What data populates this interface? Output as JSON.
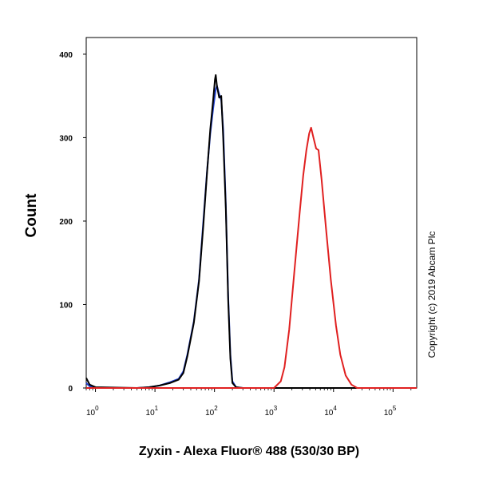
{
  "chart_data": {
    "type": "line",
    "xlabel": "Zyxin - Alexa Fluor® 488 (530/30 BP)",
    "ylabel": "Count",
    "x_scale": "log",
    "xlim": [
      0.7,
      250000
    ],
    "ylim": [
      0,
      420
    ],
    "y_ticks": [
      0,
      100,
      200,
      300,
      400
    ],
    "x_ticks": [
      {
        "value": 1,
        "base": "10",
        "exp": "0"
      },
      {
        "value": 10,
        "base": "10",
        "exp": "1"
      },
      {
        "value": 100,
        "base": "10",
        "exp": "2"
      },
      {
        "value": 1000,
        "base": "10",
        "exp": "3"
      },
      {
        "value": 10000,
        "base": "10",
        "exp": "4"
      },
      {
        "value": 100000,
        "base": "10",
        "exp": "5"
      }
    ],
    "series": [
      {
        "color": "#1f3fd0",
        "points": [
          [
            0.7,
            6
          ],
          [
            0.8,
            2
          ],
          [
            1,
            0
          ],
          [
            5,
            0
          ],
          [
            8,
            1
          ],
          [
            12,
            3
          ],
          [
            18,
            7
          ],
          [
            25,
            11
          ],
          [
            30,
            20
          ],
          [
            35,
            40
          ],
          [
            45,
            80
          ],
          [
            55,
            130
          ],
          [
            65,
            200
          ],
          [
            75,
            260
          ],
          [
            85,
            305
          ],
          [
            95,
            335
          ],
          [
            105,
            358
          ],
          [
            110,
            362
          ],
          [
            120,
            352
          ],
          [
            130,
            345
          ],
          [
            140,
            310
          ],
          [
            155,
            220
          ],
          [
            170,
            110
          ],
          [
            185,
            40
          ],
          [
            200,
            8
          ],
          [
            230,
            1
          ],
          [
            300,
            0
          ],
          [
            250000,
            0
          ]
        ]
      },
      {
        "color": "#000000",
        "points": [
          [
            0.7,
            12
          ],
          [
            0.8,
            4
          ],
          [
            1,
            1
          ],
          [
            5,
            0
          ],
          [
            8,
            1
          ],
          [
            12,
            3
          ],
          [
            18,
            6
          ],
          [
            25,
            10
          ],
          [
            30,
            18
          ],
          [
            35,
            38
          ],
          [
            45,
            78
          ],
          [
            55,
            128
          ],
          [
            65,
            195
          ],
          [
            75,
            258
          ],
          [
            85,
            310
          ],
          [
            95,
            345
          ],
          [
            102,
            370
          ],
          [
            105,
            375
          ],
          [
            110,
            362
          ],
          [
            120,
            348
          ],
          [
            130,
            350
          ],
          [
            140,
            300
          ],
          [
            155,
            215
          ],
          [
            170,
            105
          ],
          [
            185,
            35
          ],
          [
            200,
            6
          ],
          [
            230,
            1
          ],
          [
            300,
            0
          ],
          [
            250000,
            0
          ]
        ]
      },
      {
        "color": "#e02020",
        "points": [
          [
            0.7,
            0
          ],
          [
            1000,
            0
          ],
          [
            1300,
            8
          ],
          [
            1500,
            25
          ],
          [
            1800,
            70
          ],
          [
            2200,
            140
          ],
          [
            2700,
            210
          ],
          [
            3100,
            255
          ],
          [
            3500,
            285
          ],
          [
            3900,
            305
          ],
          [
            4200,
            312
          ],
          [
            4600,
            300
          ],
          [
            5100,
            287
          ],
          [
            5600,
            285
          ],
          [
            6300,
            250
          ],
          [
            7500,
            190
          ],
          [
            9000,
            130
          ],
          [
            11000,
            75
          ],
          [
            13000,
            40
          ],
          [
            16000,
            15
          ],
          [
            20000,
            4
          ],
          [
            25000,
            0
          ],
          [
            250000,
            0
          ]
        ]
      }
    ]
  },
  "copyright": "Copyright (c) 2019 Abcam Plc"
}
